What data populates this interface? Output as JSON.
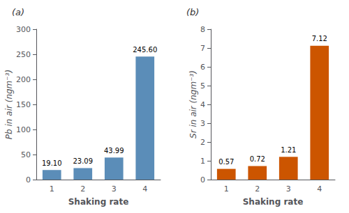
{
  "chart_data": [
    {
      "type": "bar",
      "title": "(a)",
      "categories": [
        "1",
        "2",
        "3",
        "4"
      ],
      "values": [
        19.1,
        23.09,
        43.99,
        245.6
      ],
      "value_labels": [
        "19.10",
        "23.09",
        "43.99",
        "245.60"
      ],
      "data_labels": true,
      "color": "#5b8db8",
      "xlabel": "Shaking rate",
      "ylabel": "Pb in air (ngm⁻³)",
      "ylim": [
        0,
        300
      ],
      "yticks": [
        0,
        50,
        100,
        150,
        200,
        250,
        300
      ],
      "grid": false
    },
    {
      "type": "bar",
      "title": "(b)",
      "categories": [
        "1",
        "2",
        "3",
        "4"
      ],
      "values": [
        0.57,
        0.72,
        1.21,
        7.12
      ],
      "value_labels": [
        "0.57",
        "0.72",
        "1.21",
        "7.12"
      ],
      "data_labels": true,
      "color": "#cc5500",
      "xlabel": "Shaking rate",
      "ylabel": "Sr in air (ngm⁻³)",
      "ylim": [
        0,
        8
      ],
      "yticks": [
        0,
        1,
        2,
        3,
        4,
        5,
        6,
        7,
        8
      ],
      "grid": false
    }
  ]
}
